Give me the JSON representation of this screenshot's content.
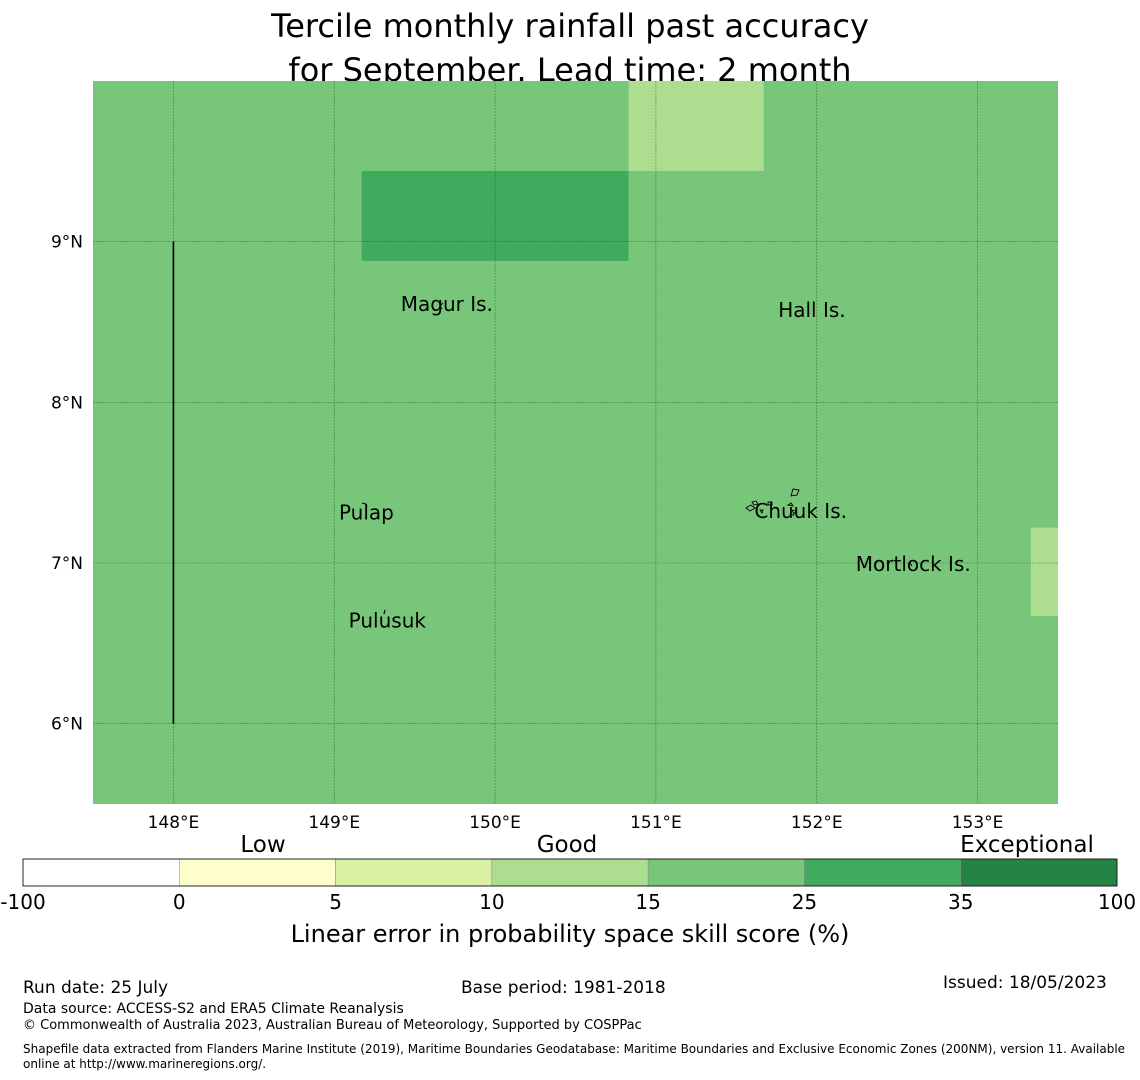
{
  "title": {
    "line1": "Tercile monthly rainfall past accuracy",
    "line2": "for September. Lead time: 2 month"
  },
  "map": {
    "x_ticks": [
      {
        "value": 148,
        "label": "148°E"
      },
      {
        "value": 149,
        "label": "149°E"
      },
      {
        "value": 150,
        "label": "150°E"
      },
      {
        "value": 151,
        "label": "151°E"
      },
      {
        "value": 152,
        "label": "152°E"
      },
      {
        "value": 153,
        "label": "153°E"
      }
    ],
    "y_ticks": [
      {
        "value": 9,
        "label": "9°N"
      },
      {
        "value": 8,
        "label": "8°N"
      },
      {
        "value": 7,
        "label": "7°N"
      },
      {
        "value": 6,
        "label": "6°N"
      }
    ],
    "lon_range": [
      147.5,
      153.5
    ],
    "lat_range": [
      5.5,
      10.0
    ],
    "background_color": "#78c679",
    "cells": [
      {
        "lon": [
          149.17,
          150.83
        ],
        "lat": [
          8.88,
          9.44
        ],
        "color": "#41ab5d"
      },
      {
        "lon": [
          150.83,
          151.67
        ],
        "lat": [
          9.44,
          10.0
        ],
        "color": "#addd8e"
      },
      {
        "lon": [
          153.33,
          153.5
        ],
        "lat": [
          6.67,
          7.22
        ],
        "color": "#addd8e"
      }
    ],
    "boundary_line": {
      "lon": 148.0,
      "lat": [
        6.0,
        9.0
      ]
    },
    "places": [
      {
        "name": "Magur Is.",
        "lon": 149.7,
        "lat": 8.57
      },
      {
        "name": "Hall Is.",
        "lon": 151.97,
        "lat": 8.53
      },
      {
        "name": "Pulap",
        "lon": 149.2,
        "lat": 7.27
      },
      {
        "name": "Chuuk Is.",
        "lon": 151.9,
        "lat": 7.28
      },
      {
        "name": "Mortlock Is.",
        "lon": 152.6,
        "lat": 6.95
      },
      {
        "name": "Pulusuk",
        "lon": 149.33,
        "lat": 6.6
      }
    ]
  },
  "legend": {
    "categories": [
      "Low",
      "Good",
      "Exceptional"
    ],
    "bins": [
      {
        "from": -100,
        "to": 0,
        "color": "#ffffff"
      },
      {
        "from": 0,
        "to": 5,
        "color": "#ffffcc"
      },
      {
        "from": 5,
        "to": 10,
        "color": "#d9f0a3"
      },
      {
        "from": 10,
        "to": 15,
        "color": "#addd8e"
      },
      {
        "from": 15,
        "to": 25,
        "color": "#78c679"
      },
      {
        "from": 25,
        "to": 35,
        "color": "#41ab5d"
      },
      {
        "from": 35,
        "to": 100,
        "color": "#238443"
      }
    ],
    "tick_labels": [
      "-100",
      "0",
      "5",
      "10",
      "15",
      "25",
      "35",
      "100"
    ],
    "label": "Linear error in probability space skill score (%)"
  },
  "footer": {
    "run_date": "Run date: 25 July",
    "base_period": "Base period: 1981-2018",
    "issued": "Issued: 18/05/2023",
    "data_source": "Data source: ACCESS-S2 and ERA5 Climate Reanalysis",
    "copyright": "© Commonwealth of Australia 2023, Australian Bureau of Meteorology, Supported by COSPPac",
    "shapefile": "Shapefile data extracted from Flanders Marine Institute (2019), Maritime Boundaries Geodatabase: Maritime Boundaries and Exclusive Economic Zones (200NM), version 11. Available online at http://www.marineregions.org/."
  }
}
